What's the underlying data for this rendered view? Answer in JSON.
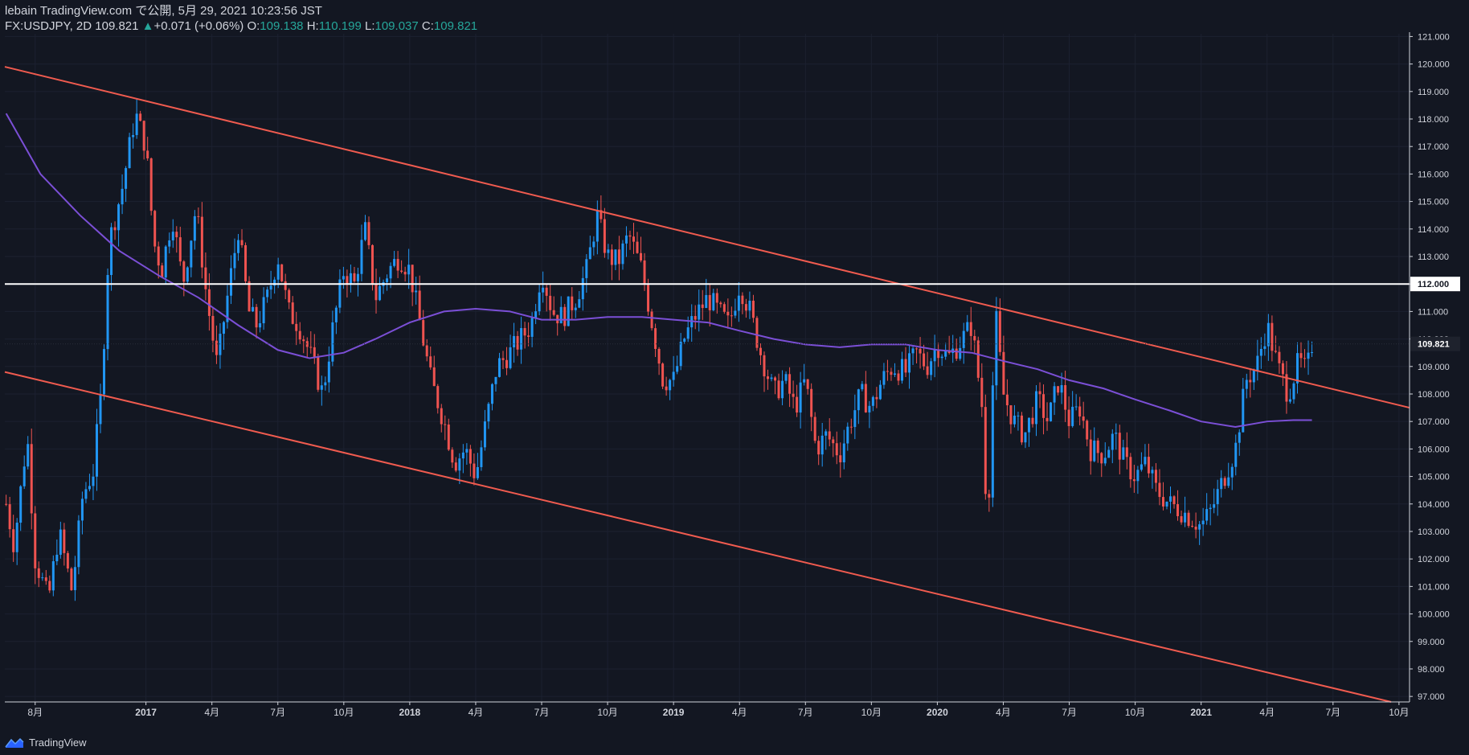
{
  "header": {
    "line1": "lebain TradingView.com で公開, 5月 29, 2021 10:23:56 JST",
    "symbol": "FX:USDJPY, 2D",
    "last": "109.821",
    "arrow": "▲",
    "change": "+0.071 (+0.06%)",
    "o_label": "O:",
    "o_value": "109.138",
    "h_label": "H:",
    "h_value": "110.199",
    "l_label": "L:",
    "l_value": "109.037",
    "c_label": "C:",
    "c_value": "109.821"
  },
  "footer": {
    "brand": "TradingView"
  },
  "colors": {
    "background": "#131722",
    "up": "#2196f3",
    "down": "#ef5350",
    "channel": "#f05b4f",
    "ma": "#7b4fd6",
    "level": "#ffffff"
  },
  "chart_data": {
    "type": "candlestick",
    "symbol": "FX:USDJPY",
    "timeframe": "2D",
    "ylim": [
      96.8,
      121.1
    ],
    "y_ticks": [
      "121.000",
      "120.000",
      "119.000",
      "118.000",
      "117.000",
      "116.000",
      "115.000",
      "114.000",
      "113.000",
      "112.000",
      "111.000",
      "110.000",
      "109.000",
      "108.000",
      "107.000",
      "106.000",
      "105.000",
      "104.000",
      "103.000",
      "102.000",
      "101.000",
      "100.000",
      "99.000",
      "98.000",
      "97.000"
    ],
    "x_ticks": [
      {
        "label": "8月",
        "t": 2016.58
      },
      {
        "label": "2017",
        "t": 2017.0
      },
      {
        "label": "4月",
        "t": 2017.25
      },
      {
        "label": "7月",
        "t": 2017.5
      },
      {
        "label": "10月",
        "t": 2017.75
      },
      {
        "label": "2018",
        "t": 2018.0
      },
      {
        "label": "4月",
        "t": 2018.25
      },
      {
        "label": "7月",
        "t": 2018.5
      },
      {
        "label": "10月",
        "t": 2018.75
      },
      {
        "label": "2019",
        "t": 2019.0
      },
      {
        "label": "4月",
        "t": 2019.25
      },
      {
        "label": "7月",
        "t": 2019.5
      },
      {
        "label": "10月",
        "t": 2019.75
      },
      {
        "label": "2020",
        "t": 2020.0
      },
      {
        "label": "4月",
        "t": 2020.25
      },
      {
        "label": "7月",
        "t": 2020.5
      },
      {
        "label": "10月",
        "t": 2020.75
      },
      {
        "label": "2021",
        "t": 2021.0
      },
      {
        "label": "4月",
        "t": 2021.25
      },
      {
        "label": "7月",
        "t": 2021.5
      },
      {
        "label": "10月",
        "t": 2021.75
      }
    ],
    "xlim": [
      2016.465,
      2021.79
    ],
    "price_path": [
      [
        2016.47,
        104.0
      ],
      [
        2016.5,
        102.5
      ],
      [
        2016.55,
        106.5
      ],
      [
        2016.58,
        102.0
      ],
      [
        2016.63,
        100.5
      ],
      [
        2016.67,
        103.0
      ],
      [
        2016.72,
        100.8
      ],
      [
        2016.76,
        104.3
      ],
      [
        2016.8,
        105.2
      ],
      [
        2016.83,
        108.0
      ],
      [
        2016.86,
        113.5
      ],
      [
        2016.91,
        115.5
      ],
      [
        2016.96,
        118.2
      ],
      [
        2017.0,
        117.0
      ],
      [
        2017.03,
        113.5
      ],
      [
        2017.06,
        112.5
      ],
      [
        2017.1,
        114.5
      ],
      [
        2017.14,
        112.0
      ],
      [
        2017.19,
        114.8
      ],
      [
        2017.23,
        111.5
      ],
      [
        2017.27,
        109.0
      ],
      [
        2017.3,
        111.0
      ],
      [
        2017.35,
        114.0
      ],
      [
        2017.39,
        111.0
      ],
      [
        2017.42,
        110.5
      ],
      [
        2017.46,
        111.5
      ],
      [
        2017.5,
        113.0
      ],
      [
        2017.54,
        111.0
      ],
      [
        2017.58,
        110.5
      ],
      [
        2017.62,
        109.5
      ],
      [
        2017.67,
        108.0
      ],
      [
        2017.71,
        110.5
      ],
      [
        2017.75,
        112.5
      ],
      [
        2017.79,
        112.0
      ],
      [
        2017.83,
        114.0
      ],
      [
        2017.87,
        111.5
      ],
      [
        2017.92,
        112.5
      ],
      [
        2017.96,
        113.0
      ],
      [
        2018.0,
        112.5
      ],
      [
        2018.04,
        110.5
      ],
      [
        2018.08,
        108.5
      ],
      [
        2018.13,
        107.0
      ],
      [
        2018.17,
        105.5
      ],
      [
        2018.21,
        106.0
      ],
      [
        2018.25,
        105.0
      ],
      [
        2018.29,
        107.0
      ],
      [
        2018.33,
        109.0
      ],
      [
        2018.38,
        109.5
      ],
      [
        2018.42,
        110.0
      ],
      [
        2018.46,
        110.5
      ],
      [
        2018.5,
        112.5
      ],
      [
        2018.54,
        111.0
      ],
      [
        2018.58,
        110.8
      ],
      [
        2018.63,
        111.5
      ],
      [
        2018.67,
        112.5
      ],
      [
        2018.71,
        114.5
      ],
      [
        2018.75,
        113.0
      ],
      [
        2018.79,
        112.8
      ],
      [
        2018.83,
        113.8
      ],
      [
        2018.88,
        112.5
      ],
      [
        2018.92,
        110.5
      ],
      [
        2018.96,
        108.5
      ],
      [
        2019.0,
        108.5
      ],
      [
        2019.04,
        110.0
      ],
      [
        2019.08,
        110.8
      ],
      [
        2019.13,
        111.5
      ],
      [
        2019.17,
        111.0
      ],
      [
        2019.21,
        110.5
      ],
      [
        2019.25,
        112.0
      ],
      [
        2019.29,
        111.0
      ],
      [
        2019.33,
        109.5
      ],
      [
        2019.38,
        108.0
      ],
      [
        2019.42,
        108.5
      ],
      [
        2019.46,
        107.5
      ],
      [
        2019.5,
        108.5
      ],
      [
        2019.54,
        106.0
      ],
      [
        2019.58,
        106.5
      ],
      [
        2019.63,
        105.8
      ],
      [
        2019.67,
        107.0
      ],
      [
        2019.71,
        108.0
      ],
      [
        2019.75,
        107.5
      ],
      [
        2019.79,
        108.5
      ],
      [
        2019.83,
        109.0
      ],
      [
        2019.88,
        108.8
      ],
      [
        2019.92,
        109.5
      ],
      [
        2019.96,
        109.0
      ],
      [
        2020.0,
        109.8
      ],
      [
        2020.04,
        109.3
      ],
      [
        2020.08,
        109.8
      ],
      [
        2020.13,
        110.5
      ],
      [
        2020.17,
        107.5
      ],
      [
        2020.19,
        103.0
      ],
      [
        2020.22,
        111.0
      ],
      [
        2020.25,
        108.0
      ],
      [
        2020.29,
        107.0
      ],
      [
        2020.33,
        106.5
      ],
      [
        2020.38,
        107.8
      ],
      [
        2020.42,
        107.0
      ],
      [
        2020.46,
        108.5
      ],
      [
        2020.5,
        107.0
      ],
      [
        2020.54,
        107.5
      ],
      [
        2020.58,
        106.0
      ],
      [
        2020.63,
        105.8
      ],
      [
        2020.67,
        106.5
      ],
      [
        2020.71,
        105.5
      ],
      [
        2020.75,
        105.0
      ],
      [
        2020.79,
        105.5
      ],
      [
        2020.83,
        104.5
      ],
      [
        2020.88,
        104.0
      ],
      [
        2020.92,
        103.8
      ],
      [
        2020.96,
        103.5
      ],
      [
        2021.0,
        103.2
      ],
      [
        2021.04,
        103.8
      ],
      [
        2021.08,
        104.8
      ],
      [
        2021.13,
        106.0
      ],
      [
        2021.17,
        108.5
      ],
      [
        2021.21,
        109.0
      ],
      [
        2021.25,
        110.5
      ],
      [
        2021.29,
        109.0
      ],
      [
        2021.33,
        108.0
      ],
      [
        2021.37,
        109.2
      ],
      [
        2021.4,
        108.8
      ],
      [
        2021.42,
        109.8
      ]
    ],
    "moving_average": [
      [
        2016.47,
        118.2
      ],
      [
        2016.6,
        116.0
      ],
      [
        2016.75,
        114.5
      ],
      [
        2016.9,
        113.2
      ],
      [
        2017.05,
        112.3
      ],
      [
        2017.2,
        111.5
      ],
      [
        2017.35,
        110.5
      ],
      [
        2017.5,
        109.6
      ],
      [
        2017.62,
        109.3
      ],
      [
        2017.75,
        109.5
      ],
      [
        2017.87,
        110.0
      ],
      [
        2018.0,
        110.6
      ],
      [
        2018.13,
        111.0
      ],
      [
        2018.25,
        111.1
      ],
      [
        2018.38,
        111.0
      ],
      [
        2018.5,
        110.7
      ],
      [
        2018.63,
        110.7
      ],
      [
        2018.75,
        110.8
      ],
      [
        2018.88,
        110.8
      ],
      [
        2019.0,
        110.7
      ],
      [
        2019.13,
        110.6
      ],
      [
        2019.25,
        110.3
      ],
      [
        2019.38,
        110.0
      ],
      [
        2019.5,
        109.8
      ],
      [
        2019.63,
        109.7
      ],
      [
        2019.75,
        109.8
      ],
      [
        2019.88,
        109.8
      ],
      [
        2020.0,
        109.6
      ],
      [
        2020.13,
        109.5
      ],
      [
        2020.25,
        109.2
      ],
      [
        2020.38,
        108.9
      ],
      [
        2020.5,
        108.5
      ],
      [
        2020.63,
        108.2
      ],
      [
        2020.75,
        107.8
      ],
      [
        2020.88,
        107.4
      ],
      [
        2021.0,
        107.0
      ],
      [
        2021.13,
        106.8
      ],
      [
        2021.25,
        107.0
      ],
      [
        2021.35,
        107.05
      ],
      [
        2021.42,
        107.05
      ]
    ],
    "trendlines": [
      {
        "name": "channel-upper",
        "points": [
          [
            2016.465,
            119.9
          ],
          [
            2021.79,
            107.5
          ]
        ]
      },
      {
        "name": "channel-lower",
        "points": [
          [
            2016.465,
            108.8
          ],
          [
            2021.72,
            96.8
          ]
        ]
      }
    ],
    "horizontal_level": 112.0,
    "last_price_label": "109.821",
    "level_label": "112.000"
  }
}
